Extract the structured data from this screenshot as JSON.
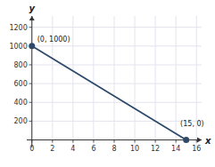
{
  "chart_data": {
    "type": "line",
    "x": [
      0,
      15
    ],
    "values": [
      1000,
      0
    ],
    "color": "#2e4a6b",
    "marker": "circle",
    "xlabel": "x",
    "ylabel": "y",
    "xlim": [
      -0.5,
      16.5
    ],
    "ylim": [
      -80,
      1320
    ],
    "xticks": [
      0,
      2,
      4,
      6,
      8,
      10,
      12,
      14,
      16
    ],
    "yticks": [
      200,
      400,
      600,
      800,
      1000,
      1200
    ],
    "grid": true,
    "annotations": [
      "(0, 1000)",
      "(15, 0)"
    ]
  }
}
